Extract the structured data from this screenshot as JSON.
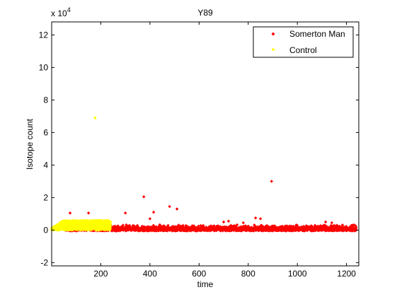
{
  "chart_data": {
    "type": "scatter",
    "title": "Y89",
    "xlabel": "time",
    "ylabel": "Isotope count",
    "y_scale_label": "x 10",
    "y_scale_exponent": "4",
    "xlim": [
      0,
      1250
    ],
    "ylim": [
      -2.2,
      12.8
    ],
    "y_unit_multiplier": 10000,
    "xticks": [
      200,
      400,
      600,
      800,
      1000,
      1200
    ],
    "yticks": [
      -2,
      0,
      2,
      4,
      6,
      8,
      10,
      12
    ],
    "grid": false,
    "legend_position": "top-right",
    "series": [
      {
        "name": "Somerton Man",
        "color": "#ff0000",
        "marker": "diamond",
        "x_range": [
          50,
          1240
        ],
        "baseline_band": [
          -0.05,
          0.35
        ],
        "outliers": [
          [
            75,
            1.05
          ],
          [
            150,
            1.05
          ],
          [
            300,
            1.05
          ],
          [
            375,
            2.05
          ],
          [
            400,
            0.7
          ],
          [
            415,
            1.1
          ],
          [
            480,
            1.45
          ],
          [
            510,
            1.3
          ],
          [
            700,
            0.5
          ],
          [
            720,
            0.55
          ],
          [
            780,
            0.45
          ],
          [
            830,
            0.75
          ],
          [
            850,
            0.7
          ],
          [
            895,
            3.0
          ],
          [
            1115,
            0.5
          ],
          [
            1140,
            0.45
          ]
        ]
      },
      {
        "name": "Control",
        "color": "#ffff00",
        "marker": "point",
        "x_range": [
          0,
          240
        ],
        "baseline_band": [
          0.0,
          0.6
        ],
        "outliers": [
          [
            177,
            6.9
          ]
        ]
      }
    ]
  }
}
